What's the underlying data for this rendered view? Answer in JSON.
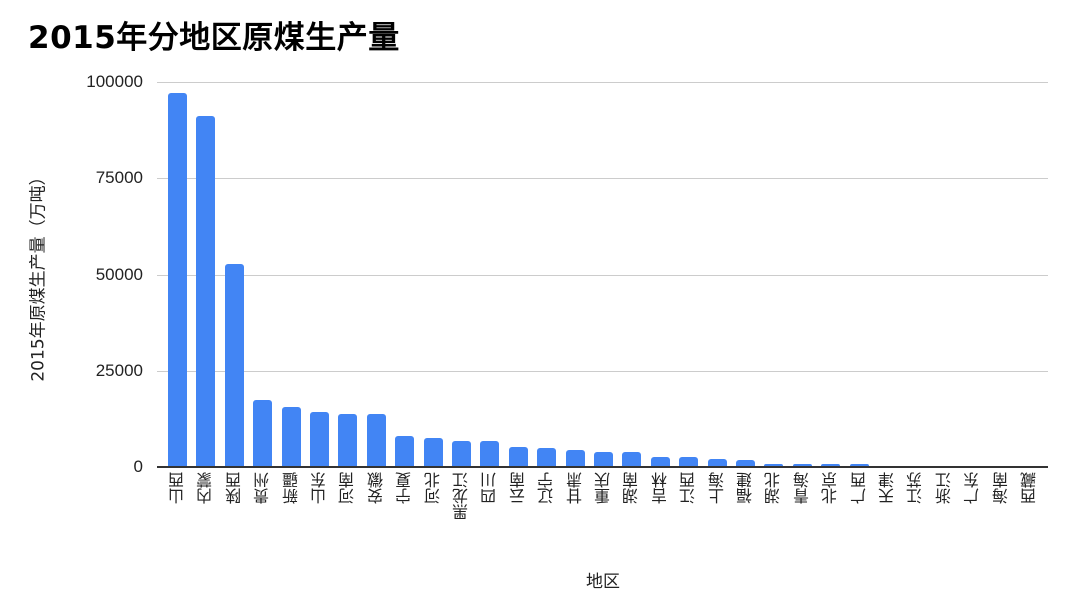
{
  "chart_data": {
    "type": "bar",
    "title": "2015年分地区原煤生产量",
    "xlabel": "地区",
    "ylabel": "2015年原煤生产量（万吨）",
    "ylim": [
      0,
      100000
    ],
    "yticks": [
      "0",
      "25000",
      "50000",
      "75000",
      "100000"
    ],
    "grid": true,
    "legend": "none",
    "bar_color": "#4285f4",
    "categories": [
      "山西",
      "内蒙",
      "陕西",
      "贵州",
      "新疆",
      "山东",
      "河南",
      "安徽",
      "宁夏",
      "河北",
      "黑龙江",
      "四川",
      "云南",
      "辽宁",
      "甘肃",
      "重庆",
      "湖南",
      "吉林",
      "江西",
      "上海",
      "福建",
      "湖北",
      "青海",
      "北京",
      "广西",
      "天津",
      "江苏",
      "浙江",
      "广东",
      "海南",
      "西藏"
    ],
    "values": [
      96800,
      91000,
      52400,
      17100,
      15300,
      14000,
      13600,
      13500,
      7700,
      7300,
      6400,
      6400,
      5000,
      4600,
      4200,
      3700,
      3700,
      2400,
      2400,
      1900,
      1500,
      600,
      600,
      600,
      600,
      0,
      0,
      0,
      0,
      0,
      0
    ]
  }
}
